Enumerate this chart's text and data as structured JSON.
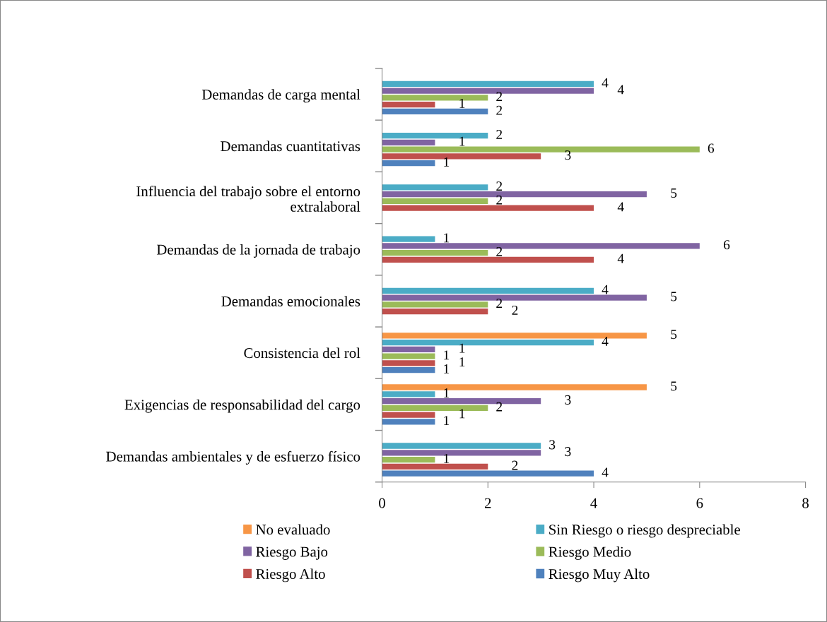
{
  "chart_data": {
    "type": "bar",
    "orientation": "horizontal",
    "categories": [
      "Demandas de carga mental",
      "Demandas cuantitativas",
      "Influencia del trabajo sobre el entorno extralaboral",
      "Demandas de la jornada de trabajo",
      "Demandas emocionales",
      "Consistencia del rol",
      "Exigencias de responsabilidad del cargo",
      "Demandas ambientales y de esfuerzo físico"
    ],
    "series": [
      {
        "name": "Riesgo Muy Alto",
        "color": "#4f81bd",
        "values": [
          2,
          1,
          null,
          null,
          null,
          1,
          1,
          4
        ]
      },
      {
        "name": "Riesgo Alto",
        "color": "#c0504d",
        "values": [
          1,
          3,
          4,
          4,
          2,
          1,
          1,
          2
        ]
      },
      {
        "name": "Riesgo Medio",
        "color": "#9bbb59",
        "values": [
          2,
          6,
          2,
          2,
          2,
          1,
          2,
          1
        ]
      },
      {
        "name": "Riesgo Bajo",
        "color": "#8064a2",
        "values": [
          4,
          1,
          5,
          6,
          5,
          1,
          3,
          3
        ]
      },
      {
        "name": "Sin Riesgo o riesgo despreciable",
        "color": "#4bacc6",
        "values": [
          4,
          2,
          2,
          1,
          4,
          4,
          1,
          3
        ]
      },
      {
        "name": "No evaluado",
        "color": "#f79646",
        "values": [
          null,
          null,
          null,
          null,
          null,
          5,
          5,
          null
        ]
      }
    ],
    "xlim": [
      0,
      8
    ],
    "xticks": [
      0,
      2,
      4,
      6,
      8
    ],
    "grid": false,
    "legend": "bottom",
    "data_labels": true
  }
}
